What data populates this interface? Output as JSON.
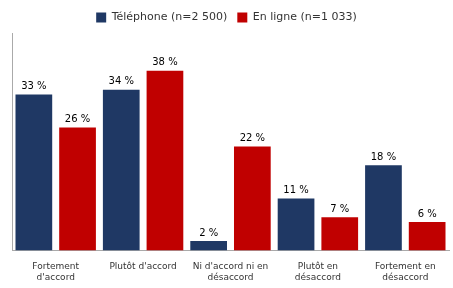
{
  "chart_data": {
    "type": "bar",
    "categories": [
      "Fortement\nd'accord",
      "Plutôt d'accord",
      "Ni d'accord ni en\ndésaccord",
      "Plutôt en\ndésaccord",
      "Fortement en\ndésaccord"
    ],
    "series": [
      {
        "name": "Téléphone (n=2 500)",
        "color": "#1F3864",
        "values": [
          33,
          34,
          2,
          11,
          18
        ],
        "value_labels": [
          "33 %",
          "34 %",
          "2 %",
          "11 %",
          "18 %"
        ]
      },
      {
        "name": "En ligne (n=1 033)",
        "color": "#C00000",
        "values": [
          26,
          38,
          22,
          7,
          6
        ],
        "value_labels": [
          "26 %",
          "38 %",
          "22 %",
          "7 %",
          "6 %"
        ]
      }
    ],
    "ylim": [
      0,
      46
    ],
    "grid": false,
    "legend": "top",
    "data_labels": true,
    "tick_labels": "x"
  }
}
